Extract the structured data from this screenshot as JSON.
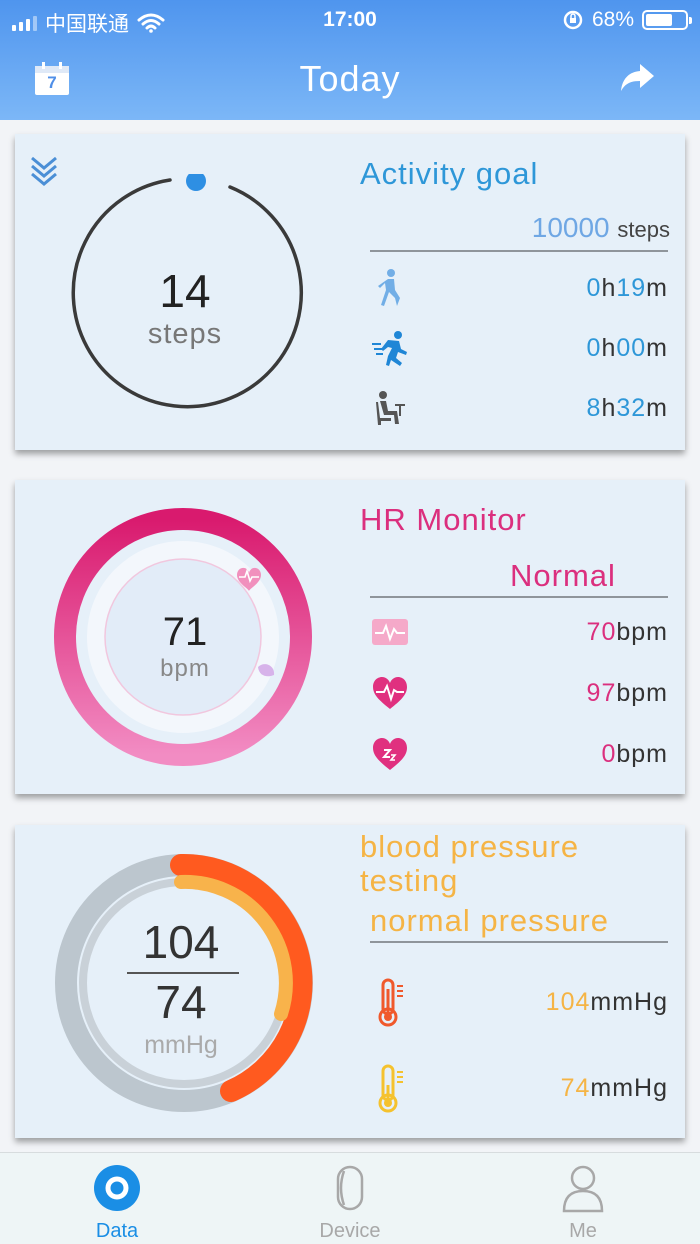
{
  "status_bar": {
    "carrier": "中国联通",
    "time": "17:00",
    "battery": "68%"
  },
  "nav": {
    "title": "Today",
    "calendar_day": "7"
  },
  "activity": {
    "steps": "14",
    "steps_label": "steps",
    "title": "Activity goal",
    "goal_value": "10000",
    "goal_unit": "steps",
    "walk": {
      "h": "0",
      "h_unit": "h",
      "m": "19",
      "m_unit": "m"
    },
    "run": {
      "h": "0",
      "h_unit": "h",
      "m": "00",
      "m_unit": "m"
    },
    "sit": {
      "h": "8",
      "h_unit": "h",
      "m": "32",
      "m_unit": "m"
    }
  },
  "hr": {
    "title": "HR Monitor",
    "status": "Normal",
    "bpm": "71",
    "bpm_label": "bpm",
    "avg": "70",
    "max": "97",
    "rest": "0",
    "unit": "bpm"
  },
  "bp": {
    "title_line1": "blood pressure",
    "title_line2": "testing",
    "status": "normal pressure",
    "systolic": "104",
    "diastolic": "74",
    "unit_label": "mmHg",
    "sys_value": "104",
    "dia_value": "74",
    "unit": "mmHg"
  },
  "tabs": [
    {
      "label": "Data"
    },
    {
      "label": "Device"
    },
    {
      "label": "Me"
    }
  ],
  "colors": {
    "header": "#5a9ef0",
    "activity_accent": "#2e97d8",
    "hr_accent": "#e0307f",
    "bp_accent": "#f5b445",
    "bp_arc": "#ff5a1f",
    "tab_active": "#1a8ee5",
    "tab_inactive": "#a8a8a8"
  }
}
